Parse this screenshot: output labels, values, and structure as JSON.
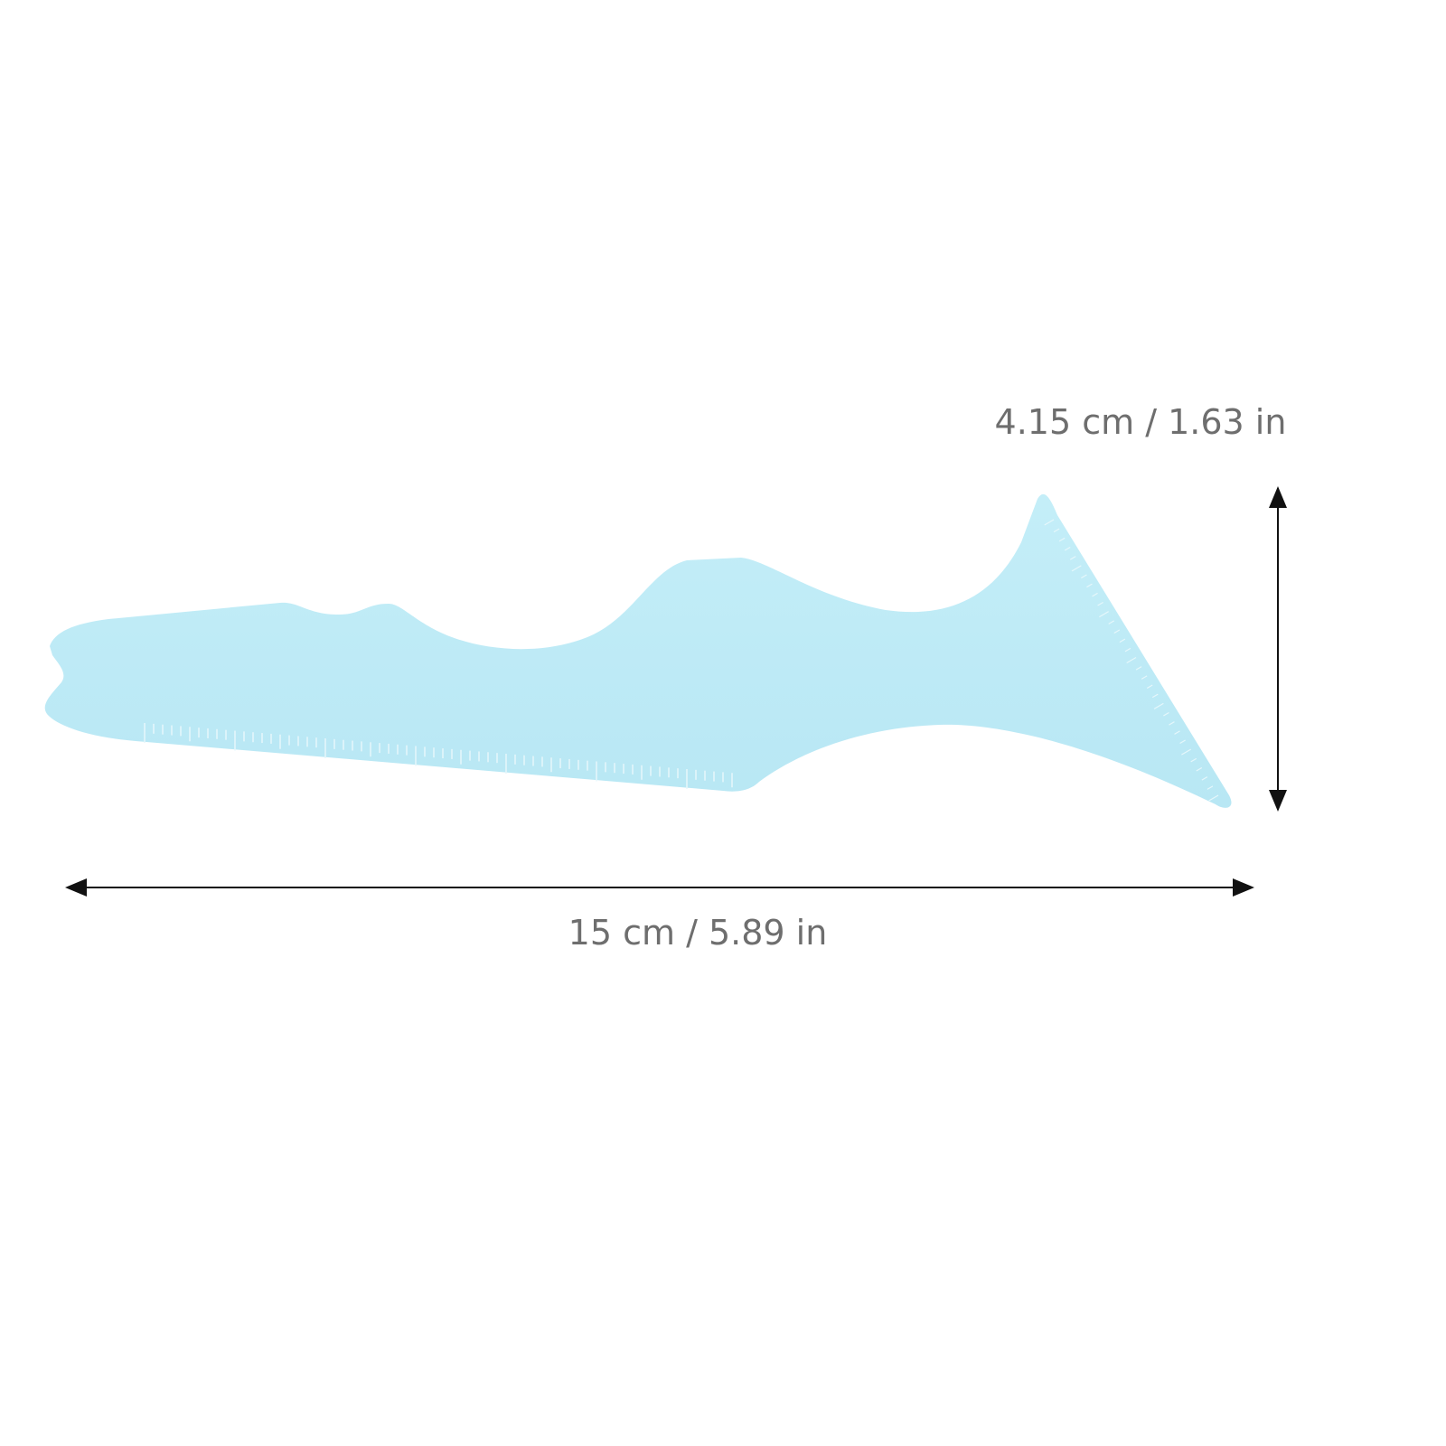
{
  "product": {
    "name_icon": "eyeliner-stencil-ruler",
    "color": "#bdeaf5",
    "tick_color": "#e6f7fb"
  },
  "dimensions": {
    "height_label": "4.15 cm / 1.63 in",
    "width_label": "15 cm / 5.89 in",
    "arrow_color": "#111111",
    "text_color": "#6e6e6e"
  }
}
